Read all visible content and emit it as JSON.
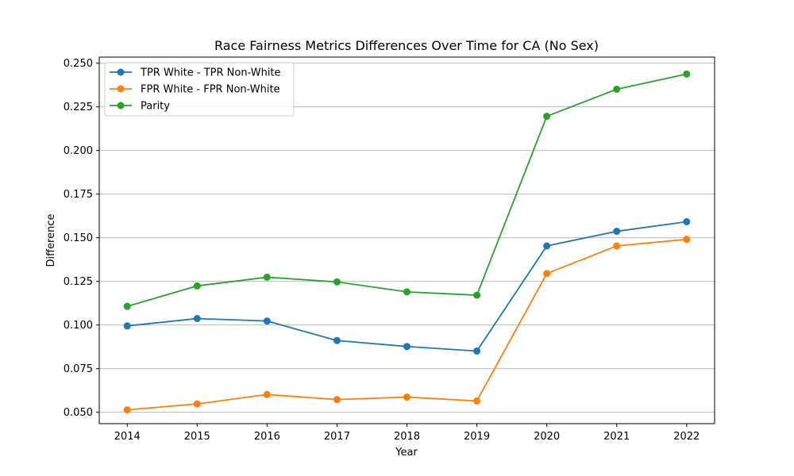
{
  "chart_data": {
    "type": "line",
    "title": "Race Fairness Metrics Differences Over Time for CA (No Sex)",
    "xlabel": "Year",
    "ylabel": "Difference",
    "x": [
      2014,
      2015,
      2016,
      2017,
      2018,
      2019,
      2020,
      2021,
      2022
    ],
    "xlim": [
      2013.6,
      2022.4
    ],
    "ylim": [
      0.0435,
      0.2535
    ],
    "yticks": [
      0.05,
      0.075,
      0.1,
      0.125,
      0.15,
      0.175,
      0.2,
      0.225,
      0.25
    ],
    "ytick_labels": [
      "0.050",
      "0.075",
      "0.100",
      "0.125",
      "0.150",
      "0.175",
      "0.200",
      "0.225",
      "0.250"
    ],
    "grid": "horizontal",
    "legend_position": "top-left",
    "series": [
      {
        "name": "TPR White - TPR Non-White",
        "color": "#1f77b4",
        "values": [
          0.0995,
          0.1037,
          0.1023,
          0.0911,
          0.0877,
          0.0851,
          0.1453,
          0.1537,
          0.1592
        ]
      },
      {
        "name": "FPR White - FPR Non-White",
        "color": "#ff7f0e",
        "values": [
          0.0514,
          0.0548,
          0.0602,
          0.0573,
          0.0587,
          0.0565,
          0.1295,
          0.1453,
          0.1491
        ]
      },
      {
        "name": "Parity",
        "color": "#2ca02c",
        "values": [
          0.1107,
          0.1224,
          0.1274,
          0.1247,
          0.119,
          0.1171,
          0.2196,
          0.2351,
          0.2438
        ]
      }
    ]
  }
}
